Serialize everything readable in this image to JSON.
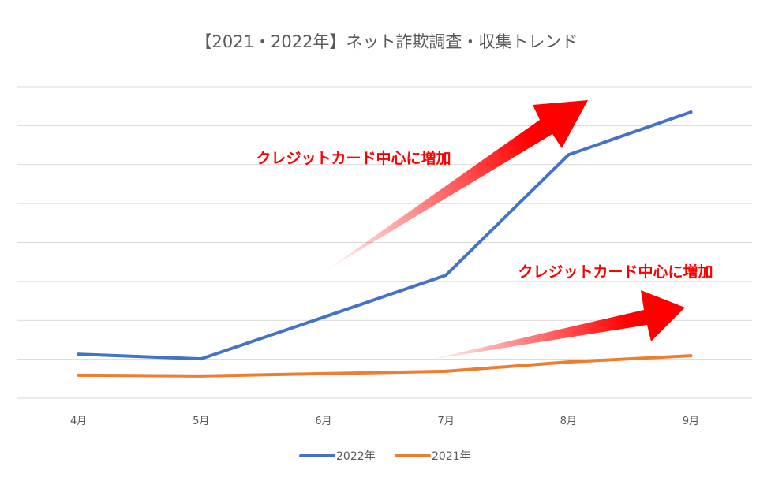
{
  "chart_data": {
    "type": "line",
    "title": "【2021・2022年】ネット詐欺調査・収集トレンド",
    "xlabel": "",
    "ylabel": "",
    "categories": [
      "4月",
      "5月",
      "6月",
      "7月",
      "8月",
      "9月"
    ],
    "ylim": [
      0,
      8
    ],
    "grid": true,
    "y_tick_labels_shown": false,
    "legend_position": "bottom",
    "series": [
      {
        "name": "2022年",
        "color": "#4472c4",
        "values": [
          1.13,
          1.01,
          2.08,
          3.16,
          6.25,
          7.35
        ]
      },
      {
        "name": "2021年",
        "color": "#ed7d31",
        "values": [
          0.59,
          0.57,
          0.63,
          0.69,
          0.93,
          1.09
        ]
      }
    ],
    "annotations": [
      {
        "text": "クレジットカード中心に増加",
        "target": "2022年",
        "arrow_color": "#ff0000"
      },
      {
        "text": "クレジットカード中心に増加",
        "target": "2021年",
        "arrow_color": "#ff0000"
      }
    ]
  }
}
